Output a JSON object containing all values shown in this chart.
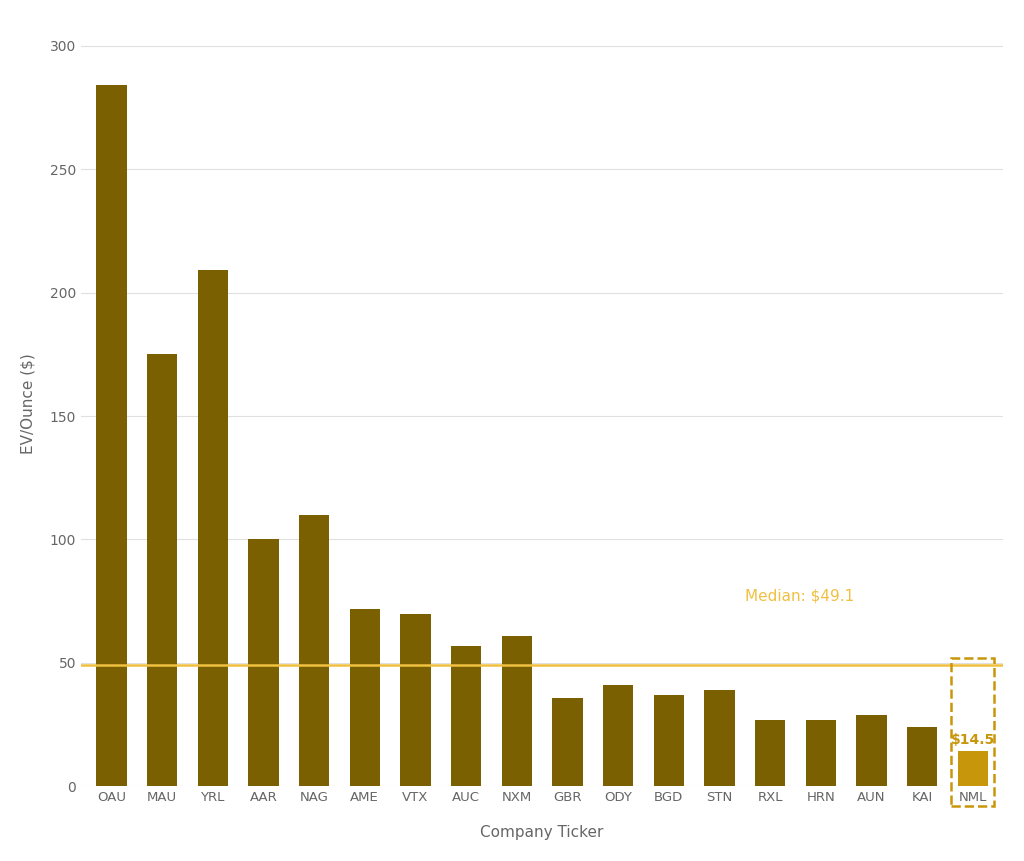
{
  "categories": [
    "OAU",
    "MAU",
    "YRL",
    "AAR",
    "NAG",
    "AME",
    "VTX",
    "AUC",
    "NXM",
    "GBR",
    "ODY",
    "BGD",
    "STN",
    "RXL",
    "HRN",
    "AUN",
    "KAI",
    "NML"
  ],
  "values": [
    284,
    175,
    209,
    100,
    110,
    72,
    70,
    57,
    61,
    36,
    41,
    37,
    39,
    27,
    27,
    29,
    24,
    14.5
  ],
  "bar_colors": [
    "#7a6000",
    "#7a6000",
    "#7a6000",
    "#7a6000",
    "#7a6000",
    "#7a6000",
    "#7a6000",
    "#7a6000",
    "#7a6000",
    "#7a6000",
    "#7a6000",
    "#7a6000",
    "#7a6000",
    "#7a6000",
    "#7a6000",
    "#7a6000",
    "#7a6000",
    "#c8960a"
  ],
  "nml_highlight_color": "#c8960a",
  "median_value": 49.1,
  "median_line_color": "#f0c040",
  "median_label": "Median: $49.1",
  "ylabel": "EV/Ounce ($)",
  "xlabel": "Company Ticker",
  "ylim": [
    0,
    310
  ],
  "yticks": [
    0,
    50,
    100,
    150,
    200,
    250,
    300
  ],
  "background_color": "#ffffff",
  "grid_color": "#e0e0e0",
  "nml_label": "$14.5",
  "nml_box_color": "#c8960a",
  "axis_label_color": "#666666",
  "tick_label_color": "#666666"
}
